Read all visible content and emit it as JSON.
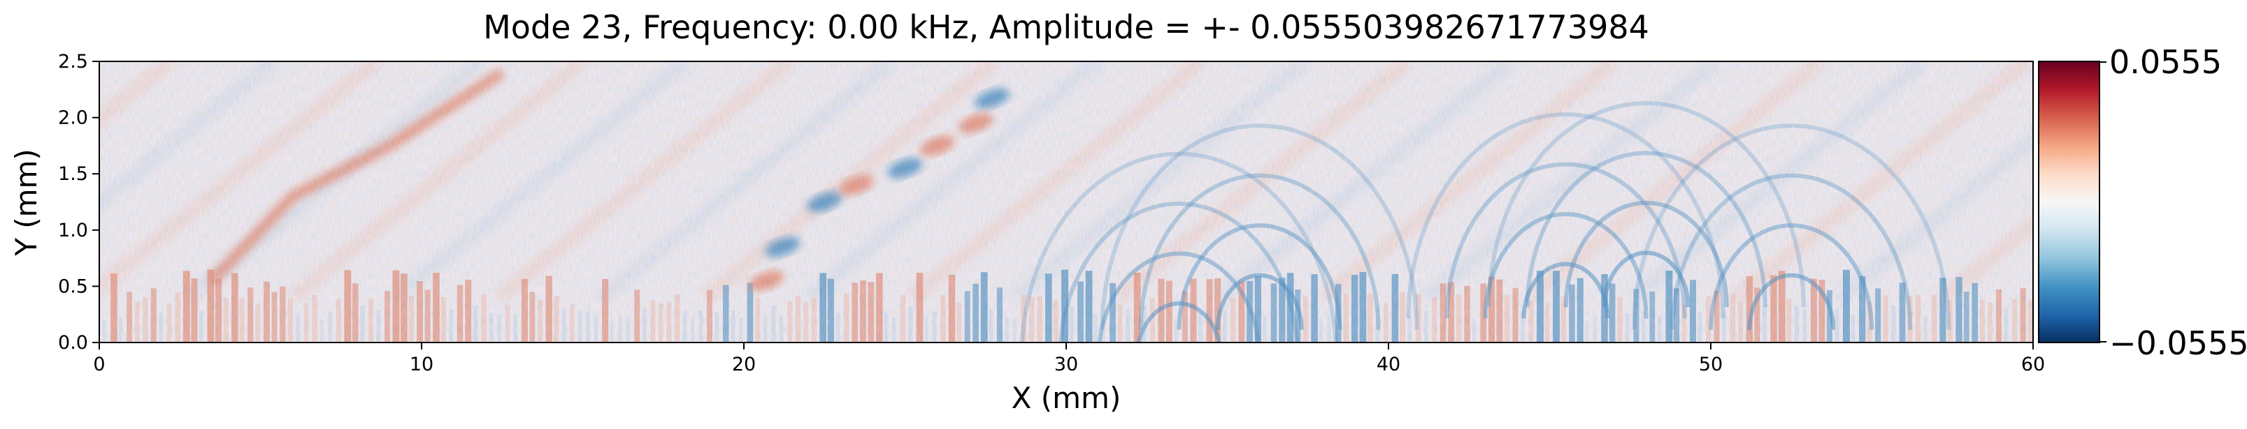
{
  "chart_data": {
    "type": "heatmap",
    "title": "Mode 23, Frequency: 0.00 kHz, Amplitude = +- 0.0555039826717739​84",
    "xlabel": "X (mm)",
    "ylabel": "Y (mm)",
    "xlim": [
      0,
      60
    ],
    "ylim": [
      0,
      2.5
    ],
    "xticks": [
      0,
      10,
      20,
      30,
      40,
      50,
      60
    ],
    "yticks": [
      0.0,
      0.5,
      1.0,
      1.5,
      2.0,
      2.5
    ],
    "xtick_labels": [
      "0",
      "10",
      "20",
      "30",
      "40",
      "50",
      "60"
    ],
    "ytick_labels": [
      "0.0",
      "0.5",
      "1.0",
      "1.5",
      "2.0",
      "2.5"
    ],
    "colormap": "RdBu_r",
    "clim": [
      -0.0555,
      0.0555
    ],
    "colorbar": {
      "max_label": "0.0555",
      "min_label": "−0.0555",
      "colors": [
        "#053061",
        "#2166ac",
        "#4393c3",
        "#92c5de",
        "#d1e5f0",
        "#f7f7f7",
        "#fddbc7",
        "#f4a582",
        "#d6604d",
        "#b2182b",
        "#67001f"
      ]
    },
    "features": [
      {
        "kind": "streak",
        "sign": "positive",
        "points": [
          [
            3.5,
            0.55
          ],
          [
            6,
            1.3
          ],
          [
            9,
            1.75
          ],
          [
            12.5,
            2.4
          ]
        ]
      },
      {
        "kind": "blobs",
        "sign": "negative",
        "points": [
          [
            21.2,
            0.85
          ],
          [
            22.5,
            1.25
          ],
          [
            25,
            1.55
          ],
          [
            27.7,
            2.17
          ]
        ]
      },
      {
        "kind": "blobs",
        "sign": "positive",
        "points": [
          [
            20.7,
            0.55
          ],
          [
            23.5,
            1.4
          ],
          [
            26,
            1.75
          ],
          [
            27.2,
            1.95
          ]
        ]
      },
      {
        "kind": "arcs",
        "sign": "negative",
        "centers": [
          [
            33.5,
            0.05
          ],
          [
            36,
            0.3
          ],
          [
            45.5,
            0.4
          ],
          [
            48,
            0.5
          ],
          [
            52.5,
            0.3
          ]
        ]
      }
    ]
  }
}
